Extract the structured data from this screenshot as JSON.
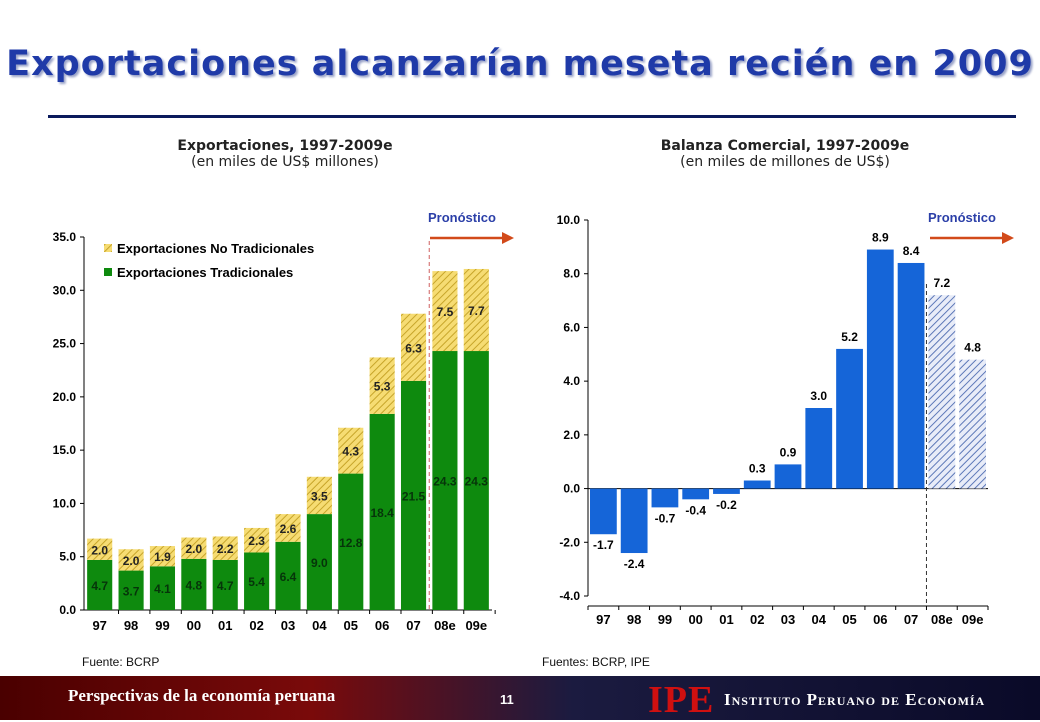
{
  "page": {
    "title": "Exportaciones alcanzarían meseta recién en 2009",
    "footer_left": "Perspectivas de la economía peruana",
    "page_number": "11",
    "logo": "IPE",
    "institute": "Instituto Peruano de Economía"
  },
  "chart_data": [
    {
      "type": "bar",
      "stacked": true,
      "title": "Exportaciones, 1997-2009e",
      "subtitle": "(en miles de US$ millones)",
      "categories": [
        "97",
        "98",
        "99",
        "00",
        "01",
        "02",
        "03",
        "04",
        "05",
        "06",
        "07",
        "08e",
        "09e"
      ],
      "series": [
        {
          "name": "Exportaciones Tradicionales",
          "values": [
            4.7,
            3.7,
            4.1,
            4.8,
            4.7,
            5.4,
            6.4,
            9.0,
            12.8,
            18.4,
            21.5,
            24.3,
            24.3
          ],
          "color": "#0e8a0e"
        },
        {
          "name": "Exportaciones No Tradicionales",
          "values": [
            2.0,
            2.0,
            1.9,
            2.0,
            2.2,
            2.3,
            2.6,
            3.5,
            4.3,
            5.3,
            6.3,
            7.5,
            7.7
          ],
          "color": "#f2d25a",
          "pattern": "diagonal-hatch"
        }
      ],
      "ylim": [
        0,
        35
      ],
      "yticks": [
        "0.0",
        "5.0",
        "10.0",
        "15.0",
        "20.0",
        "25.0",
        "30.0",
        "35.0"
      ],
      "forecast_label": "Pronóstico",
      "forecast_start": "08e",
      "legend_position": "top-left",
      "source": "Fuente: BCRP"
    },
    {
      "type": "bar",
      "title": "Balanza Comercial, 1997-2009e",
      "subtitle": "(en miles de millones de US$)",
      "categories": [
        "97",
        "98",
        "99",
        "00",
        "01",
        "02",
        "03",
        "04",
        "05",
        "06",
        "07",
        "08e",
        "09e"
      ],
      "values": [
        -1.7,
        -2.4,
        -0.7,
        -0.4,
        -0.2,
        0.3,
        0.9,
        3.0,
        5.2,
        8.9,
        8.4,
        7.2,
        4.8
      ],
      "labels": [
        "-1.7",
        "-2.4",
        "-0.7",
        "-0.4",
        "-0.2",
        "0.3",
        "0.9",
        "3.0",
        "5.2",
        "8.9",
        "8.4",
        "7.2",
        "4.8"
      ],
      "color": "#1565d8",
      "forecast_pattern": "diagonal-hatch",
      "ylim": [
        -4,
        10
      ],
      "yticks": [
        "-4.0",
        "-2.0",
        "0.0",
        "2.0",
        "4.0",
        "6.0",
        "8.0",
        "10.0"
      ],
      "forecast_label": "Pronóstico",
      "forecast_start": "08e",
      "source": "Fuentes: BCRP, IPE"
    }
  ]
}
